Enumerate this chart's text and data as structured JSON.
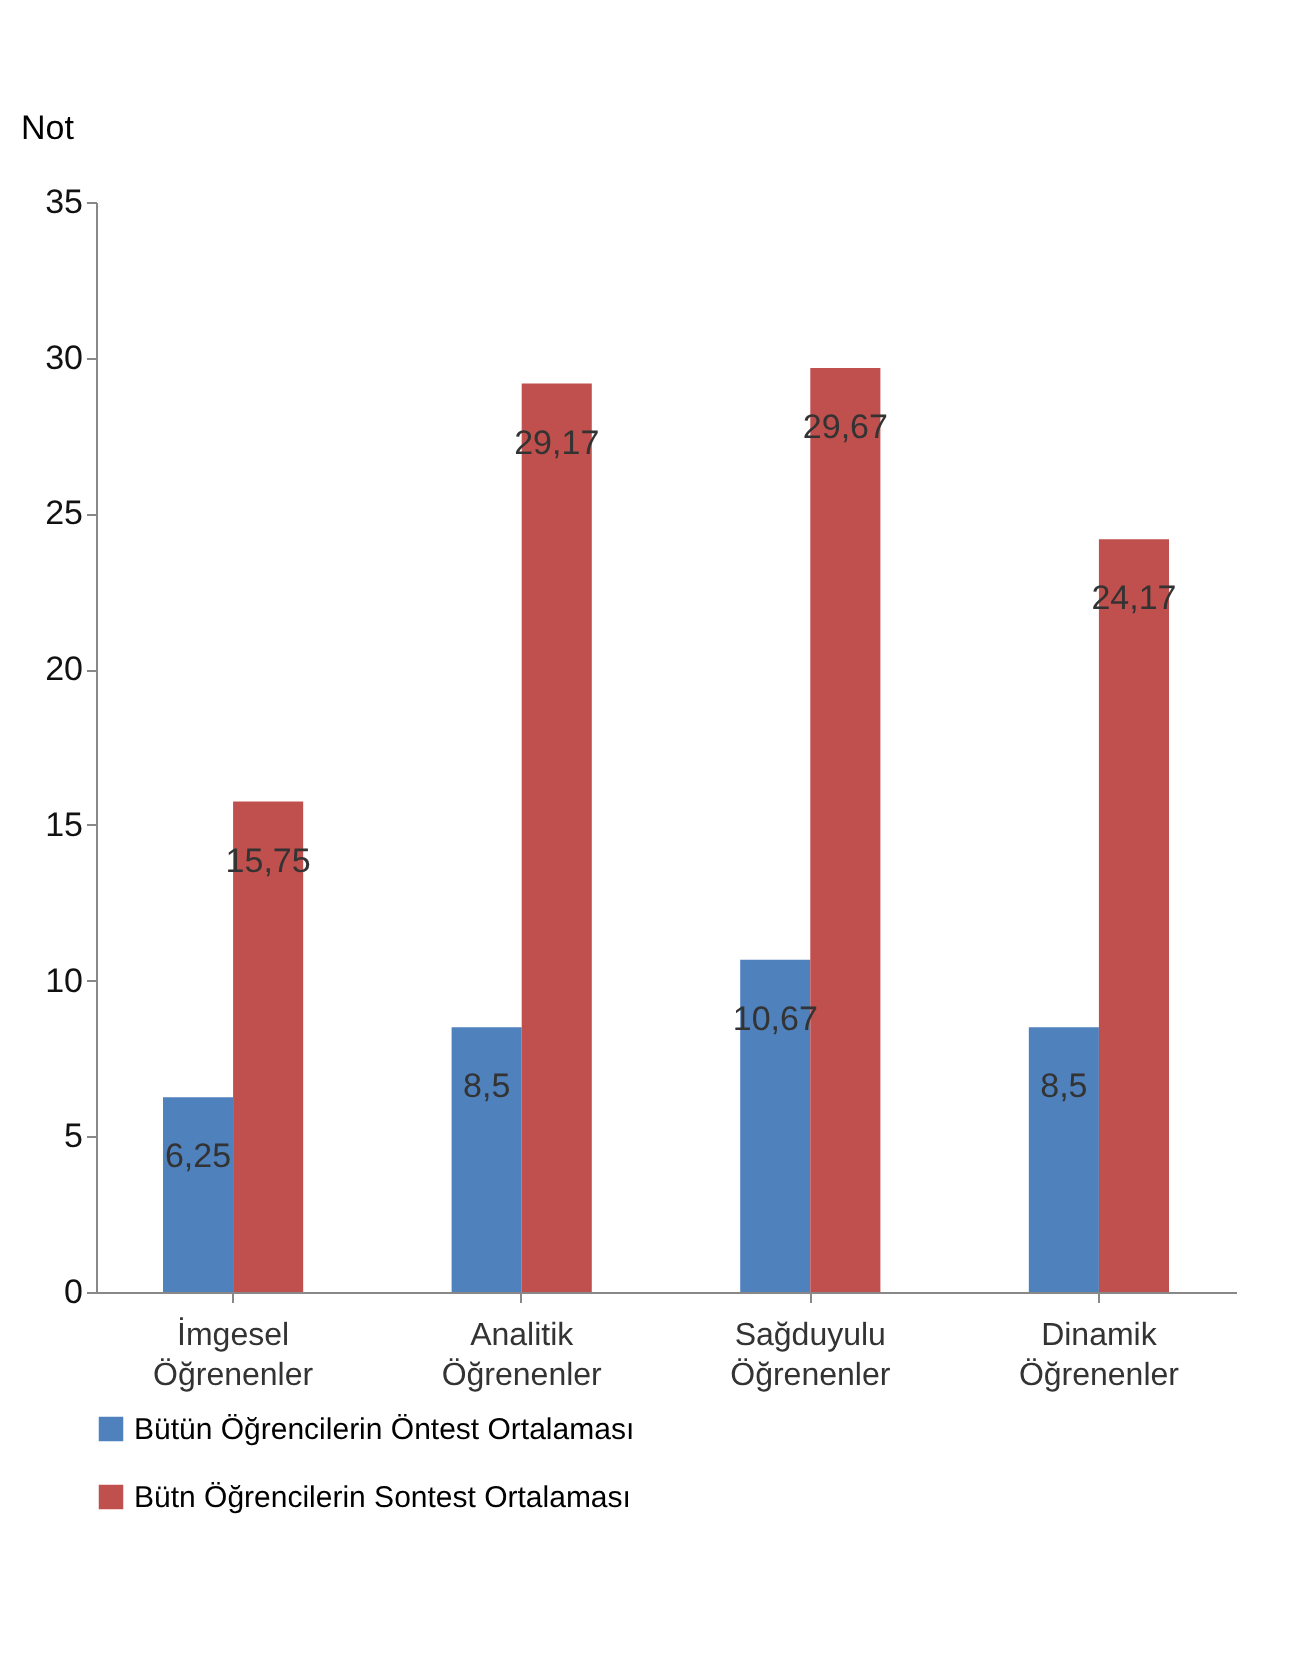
{
  "chart_data": {
    "type": "bar",
    "ylabel": "Not",
    "categories": [
      "İmgesel Öğrenenler",
      "Analitik Öğrenenler",
      "Sağduyulu Öğrenenler",
      "Dinamik Öğrenenler"
    ],
    "series": [
      {
        "name": "Bütün Öğrencilerin Öntest Ortalaması",
        "color": "#4f81bd",
        "values": [
          6.25,
          8.5,
          10.67,
          8.5
        ],
        "value_labels": [
          "6,25",
          "8,5",
          "10,67",
          "8,5"
        ]
      },
      {
        "name": "Bütn Öğrencilerin Sontest Ortalaması",
        "color": "#c0504d",
        "values": [
          15.75,
          29.17,
          29.67,
          24.17
        ],
        "value_labels": [
          "15,75",
          "29,17",
          "29,67",
          "24,17"
        ]
      }
    ],
    "ylim": [
      0,
      35
    ],
    "yticks": [
      0,
      5,
      10,
      15,
      20,
      25,
      30,
      35
    ],
    "grid": false,
    "legend": "bottom"
  }
}
